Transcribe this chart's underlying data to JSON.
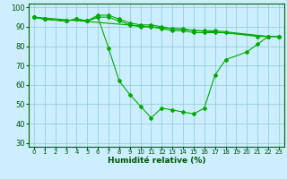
{
  "xlabel": "Humidité relative (%)",
  "background_color": "#cceeff",
  "grid_color": "#88cccc",
  "line_color": "#00aa00",
  "ylim": [
    28,
    102
  ],
  "xlim": [
    -0.5,
    23.5
  ],
  "yticks": [
    30,
    40,
    50,
    60,
    70,
    80,
    90,
    100
  ],
  "xticks": [
    0,
    1,
    2,
    3,
    4,
    5,
    6,
    7,
    8,
    9,
    10,
    11,
    12,
    13,
    14,
    15,
    16,
    17,
    18,
    19,
    20,
    21,
    22,
    23
  ],
  "line1_x": [
    0,
    1,
    3,
    4,
    5,
    6,
    7,
    8,
    9,
    10,
    11,
    12,
    13,
    14,
    15,
    16,
    17,
    18,
    20,
    21,
    22,
    23
  ],
  "line1_y": [
    95,
    94,
    93,
    94,
    93,
    95,
    79,
    62,
    55,
    49,
    43,
    48,
    47,
    46,
    45,
    48,
    65,
    73,
    77,
    81,
    85,
    85
  ],
  "line2_x": [
    0,
    1,
    3,
    4,
    5,
    6,
    7,
    8,
    9,
    10,
    11,
    12,
    13,
    14,
    15,
    16,
    17,
    18,
    21,
    22,
    23
  ],
  "line2_y": [
    95,
    94,
    93,
    94,
    93,
    95,
    95,
    93,
    91,
    90,
    90,
    89,
    88,
    88,
    87,
    87,
    87,
    87,
    85,
    85,
    85
  ],
  "line3_x": [
    0,
    22,
    23
  ],
  "line3_y": [
    95,
    85,
    85
  ],
  "line4_x": [
    0,
    1,
    3,
    4,
    5,
    6,
    7,
    8,
    9,
    10,
    11,
    12,
    13,
    14,
    15,
    16,
    17,
    22
  ],
  "line4_y": [
    95,
    94,
    93,
    94,
    93,
    96,
    96,
    94,
    92,
    91,
    91,
    90,
    89,
    89,
    88,
    88,
    88,
    85
  ]
}
